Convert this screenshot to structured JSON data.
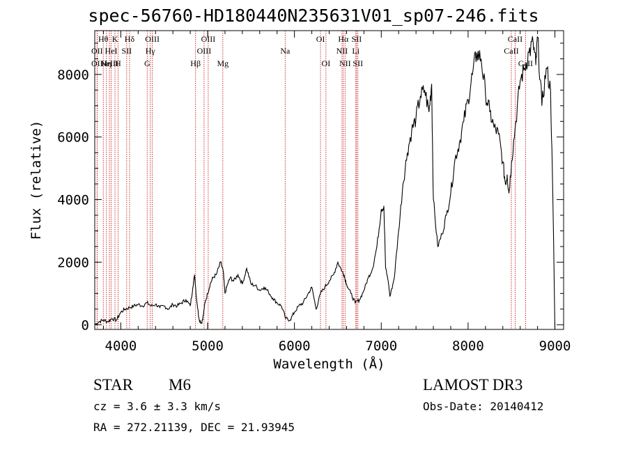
{
  "title": "spec-56760-HD180440N235631V01_sp07-246.fits",
  "info": {
    "class": "STAR",
    "subclass": "M6",
    "survey": "LAMOST DR3",
    "cz": "cz = 3.6 ± 3.3 km/s",
    "obs_date": "Obs-Date: 20140412",
    "coords": "RA = 272.21139, DEC =  21.93945"
  },
  "chart_data": {
    "type": "line",
    "title": "spec-56760-HD180440N235631V01_sp07-246.fits",
    "xlabel": "Wavelength (Å)",
    "ylabel": "Flux (relative)",
    "xlim": [
      3700,
      9100
    ],
    "ylim": [
      -150,
      9400
    ],
    "xticks": [
      4000,
      5000,
      6000,
      7000,
      8000,
      9000
    ],
    "yticks": [
      0,
      2000,
      4000,
      6000,
      8000
    ],
    "series": [
      {
        "name": "flux",
        "x": [
          3700,
          3750,
          3800,
          3850,
          3900,
          3950,
          4000,
          4050,
          4100,
          4150,
          4200,
          4250,
          4300,
          4350,
          4400,
          4450,
          4500,
          4550,
          4600,
          4650,
          4700,
          4750,
          4800,
          4830,
          4850,
          4870,
          4900,
          4930,
          4950,
          4970,
          5000,
          5030,
          5060,
          5100,
          5150,
          5180,
          5200,
          5230,
          5260,
          5300,
          5350,
          5400,
          5450,
          5500,
          5550,
          5600,
          5650,
          5700,
          5750,
          5800,
          5850,
          5900,
          5950,
          6000,
          6050,
          6100,
          6150,
          6200,
          6250,
          6300,
          6350,
          6400,
          6450,
          6500,
          6550,
          6570,
          6600,
          6650,
          6700,
          6750,
          6800,
          6850,
          6900,
          6950,
          7000,
          7030,
          7050,
          7080,
          7100,
          7150,
          7200,
          7250,
          7300,
          7350,
          7400,
          7450,
          7500,
          7550,
          7580,
          7600,
          7650,
          7700,
          7750,
          7800,
          7850,
          7900,
          7950,
          8000,
          8050,
          8100,
          8150,
          8200,
          8250,
          8300,
          8350,
          8400,
          8430,
          8450,
          8470,
          8500,
          8550,
          8600,
          8650,
          8700,
          8750,
          8780,
          8800,
          8850,
          8900,
          8950,
          8980,
          9000
        ],
        "values": [
          0,
          100,
          150,
          100,
          200,
          150,
          400,
          500,
          550,
          600,
          650,
          600,
          700,
          600,
          650,
          550,
          600,
          500,
          650,
          600,
          700,
          800,
          600,
          1200,
          1600,
          900,
          200,
          50,
          300,
          700,
          1000,
          1300,
          1500,
          1600,
          2000,
          1700,
          1000,
          1300,
          1500,
          1400,
          1600,
          1300,
          1800,
          1300,
          1250,
          1100,
          1200,
          1050,
          850,
          700,
          600,
          200,
          150,
          400,
          600,
          700,
          950,
          1200,
          500,
          1000,
          1200,
          1400,
          1600,
          2000,
          1700,
          1600,
          1300,
          1000,
          700,
          800,
          1100,
          1500,
          1800,
          2500,
          3700,
          3800,
          1800,
          1400,
          900,
          1500,
          3000,
          4500,
          5500,
          6200,
          6600,
          7300,
          7500,
          6800,
          7700,
          4000,
          2500,
          2900,
          3500,
          4200,
          5300,
          5800,
          6500,
          7200,
          8000,
          8700,
          8500,
          7400,
          6800,
          6300,
          6100,
          5200,
          4500,
          4800,
          4200,
          5200,
          6500,
          7800,
          8200,
          8700,
          9000,
          8300,
          9200,
          7000,
          8200,
          7500,
          3500,
          -150
        ]
      }
    ],
    "line_markers": [
      {
        "wl": 3798,
        "label": "Hθ",
        "row": 0
      },
      {
        "wl": 3727,
        "label": "OII",
        "row": 1
      },
      {
        "wl": 3727,
        "label": "OII",
        "row": 2
      },
      {
        "wl": 3835,
        "label": "Hη",
        "row": 2
      },
      {
        "wl": 3869,
        "label": "NeIII",
        "row": 2
      },
      {
        "wl": 3889,
        "label": "HeI",
        "row": 1
      },
      {
        "wl": 3933,
        "label": "K",
        "row": 0
      },
      {
        "wl": 3968,
        "label": "H",
        "row": 2
      },
      {
        "wl": 4068,
        "label": "SII",
        "row": 1
      },
      {
        "wl": 4101,
        "label": "Hδ",
        "row": 0
      },
      {
        "wl": 4304,
        "label": "G",
        "row": 2
      },
      {
        "wl": 4340,
        "label": "Hγ",
        "row": 1
      },
      {
        "wl": 4363,
        "label": "OIII",
        "row": 0
      },
      {
        "wl": 4861,
        "label": "Hβ",
        "row": 2
      },
      {
        "wl": 4959,
        "label": "OIII",
        "row": 1
      },
      {
        "wl": 5007,
        "label": "OIII",
        "row": 0
      },
      {
        "wl": 5175,
        "label": "Mg",
        "row": 2
      },
      {
        "wl": 5893,
        "label": "Na",
        "row": 1
      },
      {
        "wl": 6300,
        "label": "OI",
        "row": 0
      },
      {
        "wl": 6363,
        "label": "OI",
        "row": 2
      },
      {
        "wl": 6548,
        "label": "NII",
        "row": 1
      },
      {
        "wl": 6563,
        "label": "Hα",
        "row": 0
      },
      {
        "wl": 6583,
        "label": "NII",
        "row": 2
      },
      {
        "wl": 6707,
        "label": "Li",
        "row": 1
      },
      {
        "wl": 6716,
        "label": "SII",
        "row": 0
      },
      {
        "wl": 6731,
        "label": "SII",
        "row": 2
      },
      {
        "wl": 8498,
        "label": "CaII",
        "row": 1
      },
      {
        "wl": 8542,
        "label": "CaII",
        "row": 0
      },
      {
        "wl": 8662,
        "label": "CaII",
        "row": 2
      }
    ]
  }
}
